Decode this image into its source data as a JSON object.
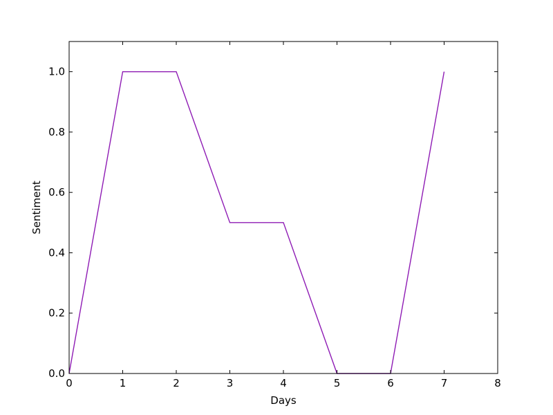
{
  "chart_data": {
    "type": "line",
    "title": "",
    "xlabel": "Days",
    "ylabel": "Sentiment",
    "xlim": [
      0,
      8
    ],
    "ylim": [
      0.0,
      1.1
    ],
    "xticks": [
      0,
      1,
      2,
      3,
      4,
      5,
      6,
      7,
      8
    ],
    "xtick_labels": [
      "0",
      "1",
      "2",
      "3",
      "4",
      "5",
      "6",
      "7",
      "8"
    ],
    "yticks": [
      0.0,
      0.2,
      0.4,
      0.6,
      0.8,
      1.0
    ],
    "ytick_labels": [
      "0.0",
      "0.2",
      "0.4",
      "0.6",
      "0.8",
      "1.0"
    ],
    "grid": false,
    "legend": "none",
    "series": [
      {
        "color": "#8e1bb4",
        "x": [
          0,
          1,
          2,
          3,
          4,
          5,
          6,
          7
        ],
        "y": [
          0.0,
          1.0,
          1.0,
          0.5,
          0.5,
          0.0,
          0.0,
          1.0
        ]
      }
    ]
  }
}
